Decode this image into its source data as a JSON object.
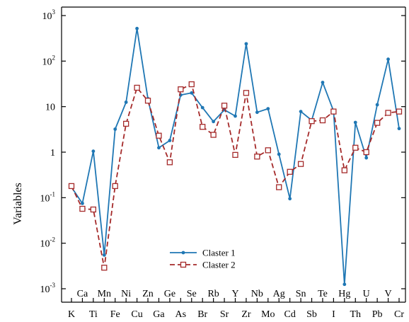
{
  "chart_data": {
    "type": "line",
    "ylabel": "Variables",
    "xlabel": "",
    "yscale": "log",
    "ylim": [
      0.0005,
      2000
    ],
    "y_ticks": [
      {
        "base": "10",
        "exp": "3",
        "value": 1000
      },
      {
        "base": "10",
        "exp": "2",
        "value": 100
      },
      {
        "base": "10",
        "value": 10
      },
      {
        "base": "1",
        "value": 1
      },
      {
        "base": "10",
        "exp": "-1",
        "value": 0.1
      },
      {
        "base": "10",
        "exp": "-2",
        "value": 0.01
      },
      {
        "base": "10",
        "exp": "-3",
        "value": 0.001
      }
    ],
    "categories": [
      "K",
      "Ca",
      "Ti",
      "Mn",
      "Fe",
      "Ni",
      "Cu",
      "Zn",
      "Ga",
      "Ge",
      "As",
      "Se",
      "Br",
      "Rb",
      "Sr",
      "Y",
      "Zr",
      "Nb",
      "Mo",
      "Ag",
      "Cd",
      "Sn",
      "Sb",
      "Te",
      "I",
      "Hg",
      "Th",
      "U",
      "Pb",
      "V",
      "Cr"
    ],
    "grid": false,
    "legend_position": "bottom-center",
    "series": [
      {
        "name": "Claster 1",
        "color": "#1f77b4",
        "marker": "dot",
        "values": [
          0.17,
          0.075,
          1.05,
          0.0055,
          3.2,
          12.5,
          520,
          15,
          1.25,
          1.8,
          18,
          20,
          9.5,
          4.7,
          8.5,
          6.2,
          240,
          7.5,
          9,
          0.9,
          0.095,
          7.8,
          5,
          34,
          8,
          0.00125,
          4.5,
          0.75,
          11,
          110,
          3.3
        ]
      },
      {
        "name": "Claster 2",
        "color": "#a52a2a",
        "marker": "open-square",
        "values": [
          0.18,
          0.057,
          0.055,
          0.0029,
          0.18,
          4.2,
          26,
          13.5,
          2.3,
          0.6,
          24,
          31,
          3.6,
          2.4,
          10.5,
          0.87,
          20,
          0.8,
          1.1,
          0.17,
          0.37,
          0.55,
          4.8,
          5,
          7.8,
          0.4,
          1.25,
          1,
          4.4,
          7.3,
          7.8
        ]
      }
    ]
  }
}
